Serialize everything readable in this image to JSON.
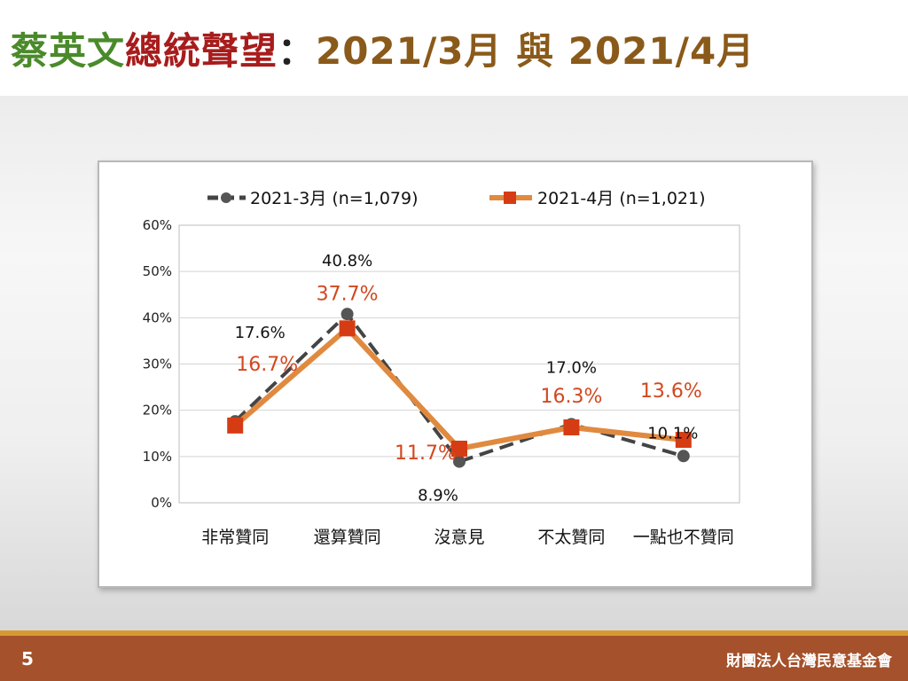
{
  "title": {
    "part1": "蔡英文",
    "part2": "總統聲望",
    "separator": "：",
    "part3": "2021/3月 與 2021/4月"
  },
  "colors": {
    "title_green": "#4a8a2a",
    "title_red": "#a81c1c",
    "title_brown": "#8a5a1a",
    "series_mar": "#444444",
    "series_apr": "#e08a40",
    "marker_apr": "#d63c14",
    "label_apr": "#d2481f",
    "footer_bg": "#a5512b",
    "footer_line": "#d89a30"
  },
  "chart_data": {
    "type": "line",
    "categories": [
      "非常贊同",
      "還算贊同",
      "沒意見",
      "不太贊同",
      "一點也不贊同"
    ],
    "series": [
      {
        "name": "2021-3月  (n=1,079)",
        "values": [
          17.6,
          40.8,
          8.9,
          17.0,
          10.1
        ],
        "labels": [
          "17.6%",
          "40.8%",
          "8.9%",
          "17.0%",
          "10.1%"
        ],
        "style": "dashed",
        "marker": "circle"
      },
      {
        "name": "2021-4月  (n=1,021)",
        "values": [
          16.7,
          37.7,
          11.7,
          16.3,
          13.6
        ],
        "labels": [
          "16.7%",
          "37.7%",
          "11.7%",
          "16.3%",
          "13.6%"
        ],
        "style": "solid",
        "marker": "square"
      }
    ],
    "ylim": [
      0,
      60
    ],
    "yticks": [
      "0%",
      "10%",
      "20%",
      "30%",
      "40%",
      "50%",
      "60%"
    ],
    "grid": true,
    "legend": "top"
  },
  "footer": {
    "page": "5",
    "org": "財團法人台灣民意基金會"
  }
}
